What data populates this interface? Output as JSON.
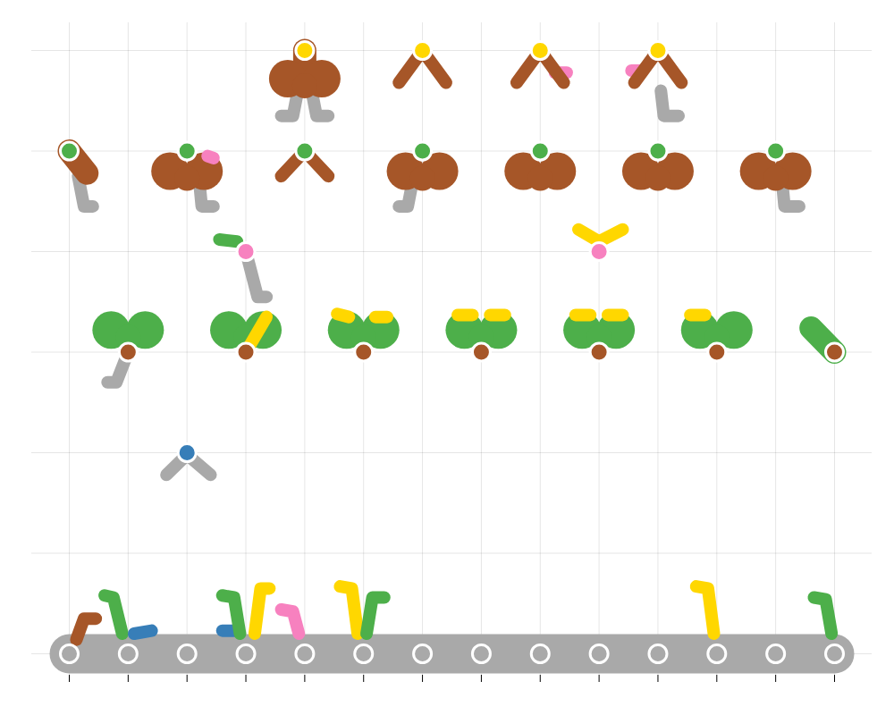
{
  "chart_data": {
    "type": "scatter",
    "xlim": [
      0,
      13
    ],
    "ylim": [
      0,
      6
    ],
    "xticks": [
      0,
      1,
      2,
      3,
      4,
      5,
      6,
      7,
      8,
      9,
      10,
      11,
      12,
      13
    ],
    "yticks": [
      0,
      1,
      2,
      3,
      4,
      5,
      6
    ],
    "grid": true,
    "tick_labels": false,
    "belts": [
      {
        "color": "#a9a9a9",
        "points": [
          [
            0,
            0
          ],
          [
            13,
            0
          ]
        ]
      }
    ],
    "strokes": [
      {
        "color": "#a9a9a9",
        "points": [
          [
            1,
            3
          ],
          [
            0.8,
            2.7
          ],
          [
            0.65,
            2.7
          ]
        ]
      },
      {
        "color": "#a9a9a9",
        "points": [
          [
            3,
            4
          ],
          [
            3.2,
            3.55
          ],
          [
            3.35,
            3.55
          ]
        ]
      },
      {
        "color": "#a9a9a9",
        "points": [
          [
            0.15,
            4.75
          ],
          [
            0.25,
            4.45
          ],
          [
            0.4,
            4.45
          ]
        ]
      },
      {
        "color": "#a9a9a9",
        "points": [
          [
            2.2,
            4.75
          ],
          [
            2.25,
            4.45
          ],
          [
            2.45,
            4.45
          ]
        ]
      },
      {
        "color": "#a9a9a9",
        "points": [
          [
            5.85,
            4.75
          ],
          [
            5.75,
            4.45
          ],
          [
            5.6,
            4.45
          ]
        ]
      },
      {
        "color": "#a9a9a9",
        "points": [
          [
            12.1,
            4.75
          ],
          [
            12.15,
            4.45
          ],
          [
            12.4,
            4.45
          ]
        ]
      },
      {
        "color": "#a9a9a9",
        "points": [
          [
            3.9,
            5.65
          ],
          [
            3.8,
            5.35
          ],
          [
            3.6,
            5.35
          ]
        ]
      },
      {
        "color": "#a9a9a9",
        "points": [
          [
            4.1,
            5.65
          ],
          [
            4.2,
            5.35
          ],
          [
            4.4,
            5.35
          ]
        ]
      },
      {
        "color": "#a9a9a9",
        "points": [
          [
            10.05,
            5.6
          ],
          [
            10.1,
            5.35
          ],
          [
            10.35,
            5.35
          ]
        ]
      },
      {
        "color": "#a9a9a9",
        "points": [
          [
            1.65,
            1.78
          ],
          [
            2,
            1.98
          ],
          [
            2.4,
            1.78
          ]
        ]
      },
      {
        "color": "#a65628",
        "points": [
          [
            0.12,
            0.14
          ],
          [
            0.25,
            0.35
          ],
          [
            0.45,
            0.35
          ]
        ]
      },
      {
        "color": "#4daf4a",
        "points": [
          [
            0.6,
            0.58
          ],
          [
            0.75,
            0.56
          ],
          [
            0.9,
            0.2
          ]
        ]
      },
      {
        "color": "#377eb8",
        "points": [
          [
            1.1,
            0.2
          ],
          [
            1.4,
            0.23
          ]
        ]
      },
      {
        "color": "#377eb8",
        "points": [
          [
            2.6,
            0.23
          ],
          [
            2.85,
            0.23
          ]
        ]
      },
      {
        "color": "#4daf4a",
        "points": [
          [
            2.6,
            0.58
          ],
          [
            2.8,
            0.56
          ],
          [
            2.9,
            0.2
          ]
        ]
      },
      {
        "color": "#ffd700",
        "points": [
          [
            3.15,
            0.2
          ],
          [
            3.25,
            0.65
          ],
          [
            3.4,
            0.65
          ]
        ]
      },
      {
        "color": "#f781bf",
        "points": [
          [
            3.6,
            0.44
          ],
          [
            3.8,
            0.42
          ],
          [
            3.9,
            0.2
          ]
        ]
      },
      {
        "color": "#ffd700",
        "points": [
          [
            4.6,
            0.67
          ],
          [
            4.8,
            0.65
          ],
          [
            4.9,
            0.2
          ]
        ]
      },
      {
        "color": "#4daf4a",
        "points": [
          [
            5.05,
            0.2
          ],
          [
            5.15,
            0.56
          ],
          [
            5.35,
            0.56
          ]
        ]
      },
      {
        "color": "#ffd700",
        "points": [
          [
            10.65,
            0.67
          ],
          [
            10.85,
            0.65
          ],
          [
            10.95,
            0.2
          ]
        ]
      },
      {
        "color": "#4daf4a",
        "points": [
          [
            12.65,
            0.56
          ],
          [
            12.85,
            0.54
          ],
          [
            12.95,
            0.2
          ]
        ]
      },
      {
        "color": "#4daf4a",
        "points": [
          [
            2.55,
            4.12
          ],
          [
            2.85,
            4.1
          ]
        ]
      },
      {
        "color": "#ffd700",
        "points": [
          [
            8.65,
            4.22
          ],
          [
            9,
            4.1
          ],
          [
            9.4,
            4.22
          ]
        ]
      },
      {
        "color": "#a65628",
        "points": [
          [
            3.6,
            4.75
          ],
          [
            4,
            5
          ],
          [
            4.4,
            4.75
          ]
        ]
      },
      {
        "color": "#f781bf",
        "points": [
          [
            2.35,
            4.95
          ],
          [
            2.45,
            4.93
          ]
        ]
      },
      {
        "color": "#f781bf",
        "points": [
          [
            8.25,
            5.78
          ],
          [
            8.45,
            5.78
          ]
        ]
      },
      {
        "color": "#f781bf",
        "points": [
          [
            9.55,
            5.8
          ],
          [
            9.7,
            5.8
          ]
        ]
      },
      {
        "color": "#a65628",
        "points": [
          [
            5.6,
            5.68
          ],
          [
            6,
            6
          ],
          [
            6.4,
            5.68
          ]
        ]
      },
      {
        "color": "#a65628",
        "points": [
          [
            7.6,
            5.68
          ],
          [
            8,
            6
          ],
          [
            8.4,
            5.68
          ]
        ]
      },
      {
        "color": "#a65628",
        "points": [
          [
            9.6,
            5.68
          ],
          [
            10,
            6
          ],
          [
            10.4,
            5.68
          ]
        ]
      }
    ],
    "blobs": [
      {
        "color": "#a65628",
        "points": [
          [
            0,
            5
          ],
          [
            0.3,
            4.78
          ]
        ]
      },
      {
        "color": "#4daf4a",
        "points": [
          [
            12.6,
            3.24
          ],
          [
            13,
            3
          ]
        ]
      },
      {
        "color": "#a65628",
        "points": [
          [
            4,
            6
          ],
          [
            4,
            5.75
          ]
        ]
      }
    ],
    "clovers": [
      {
        "x": 4,
        "y": 5.72,
        "color": "#a65628"
      },
      {
        "x": 2,
        "y": 4.8,
        "color": "#a65628"
      },
      {
        "x": 6,
        "y": 4.8,
        "color": "#a65628"
      },
      {
        "x": 8,
        "y": 4.8,
        "color": "#a65628"
      },
      {
        "x": 10,
        "y": 4.8,
        "color": "#a65628"
      },
      {
        "x": 12,
        "y": 4.8,
        "color": "#a65628"
      },
      {
        "x": 1,
        "y": 3.22,
        "color": "#4daf4a"
      },
      {
        "x": 3,
        "y": 3.22,
        "color": "#4daf4a"
      },
      {
        "x": 5,
        "y": 3.22,
        "color": "#4daf4a"
      },
      {
        "x": 7,
        "y": 3.22,
        "color": "#4daf4a"
      },
      {
        "x": 9,
        "y": 3.22,
        "color": "#4daf4a"
      },
      {
        "x": 11,
        "y": 3.22,
        "color": "#4daf4a"
      }
    ],
    "overlays": [
      {
        "color": "#ffd700",
        "points": [
          [
            3,
            3
          ],
          [
            3.35,
            3.35
          ]
        ]
      },
      {
        "color": "#ffd700",
        "points": [
          [
            4.55,
            3.38
          ],
          [
            4.75,
            3.35
          ]
        ]
      },
      {
        "color": "#ffd700",
        "points": [
          [
            5.2,
            3.35
          ],
          [
            5.4,
            3.35
          ]
        ]
      },
      {
        "color": "#ffd700",
        "points": [
          [
            6.6,
            3.37
          ],
          [
            6.85,
            3.37
          ]
        ]
      },
      {
        "color": "#ffd700",
        "points": [
          [
            7.15,
            3.37
          ],
          [
            7.4,
            3.37
          ]
        ]
      },
      {
        "color": "#ffd700",
        "points": [
          [
            8.6,
            3.37
          ],
          [
            8.85,
            3.37
          ]
        ]
      },
      {
        "color": "#ffd700",
        "points": [
          [
            9.15,
            3.37
          ],
          [
            9.4,
            3.37
          ]
        ]
      },
      {
        "color": "#ffd700",
        "points": [
          [
            10.55,
            3.37
          ],
          [
            10.8,
            3.37
          ]
        ]
      }
    ],
    "points": [
      {
        "x": 0,
        "y": 0,
        "color": "#a9a9a9"
      },
      {
        "x": 1,
        "y": 0,
        "color": "#a9a9a9"
      },
      {
        "x": 2,
        "y": 0,
        "color": "#a9a9a9"
      },
      {
        "x": 3,
        "y": 0,
        "color": "#a9a9a9"
      },
      {
        "x": 4,
        "y": 0,
        "color": "#a9a9a9"
      },
      {
        "x": 5,
        "y": 0,
        "color": "#a9a9a9"
      },
      {
        "x": 6,
        "y": 0,
        "color": "#a9a9a9"
      },
      {
        "x": 7,
        "y": 0,
        "color": "#a9a9a9"
      },
      {
        "x": 8,
        "y": 0,
        "color": "#a9a9a9"
      },
      {
        "x": 9,
        "y": 0,
        "color": "#a9a9a9"
      },
      {
        "x": 10,
        "y": 0,
        "color": "#a9a9a9"
      },
      {
        "x": 11,
        "y": 0,
        "color": "#a9a9a9"
      },
      {
        "x": 12,
        "y": 0,
        "color": "#a9a9a9"
      },
      {
        "x": 13,
        "y": 0,
        "color": "#a9a9a9"
      },
      {
        "x": 2,
        "y": 2,
        "color": "#377eb8"
      },
      {
        "x": 1,
        "y": 3,
        "color": "#a65628"
      },
      {
        "x": 3,
        "y": 3,
        "color": "#a65628"
      },
      {
        "x": 5,
        "y": 3,
        "color": "#a65628"
      },
      {
        "x": 7,
        "y": 3,
        "color": "#a65628"
      },
      {
        "x": 9,
        "y": 3,
        "color": "#a65628"
      },
      {
        "x": 11,
        "y": 3,
        "color": "#a65628"
      },
      {
        "x": 13,
        "y": 3,
        "color": "#a65628"
      },
      {
        "x": 3,
        "y": 4,
        "color": "#f781bf"
      },
      {
        "x": 9,
        "y": 4,
        "color": "#f781bf"
      },
      {
        "x": 0,
        "y": 5,
        "color": "#4daf4a"
      },
      {
        "x": 2,
        "y": 5,
        "color": "#4daf4a"
      },
      {
        "x": 4,
        "y": 5,
        "color": "#4daf4a"
      },
      {
        "x": 6,
        "y": 5,
        "color": "#4daf4a"
      },
      {
        "x": 8,
        "y": 5,
        "color": "#4daf4a"
      },
      {
        "x": 10,
        "y": 5,
        "color": "#4daf4a"
      },
      {
        "x": 12,
        "y": 5,
        "color": "#4daf4a"
      },
      {
        "x": 4,
        "y": 6,
        "color": "#ffd700"
      },
      {
        "x": 6,
        "y": 6,
        "color": "#ffd700"
      },
      {
        "x": 8,
        "y": 6,
        "color": "#ffd700"
      },
      {
        "x": 10,
        "y": 6,
        "color": "#ffd700"
      }
    ]
  }
}
